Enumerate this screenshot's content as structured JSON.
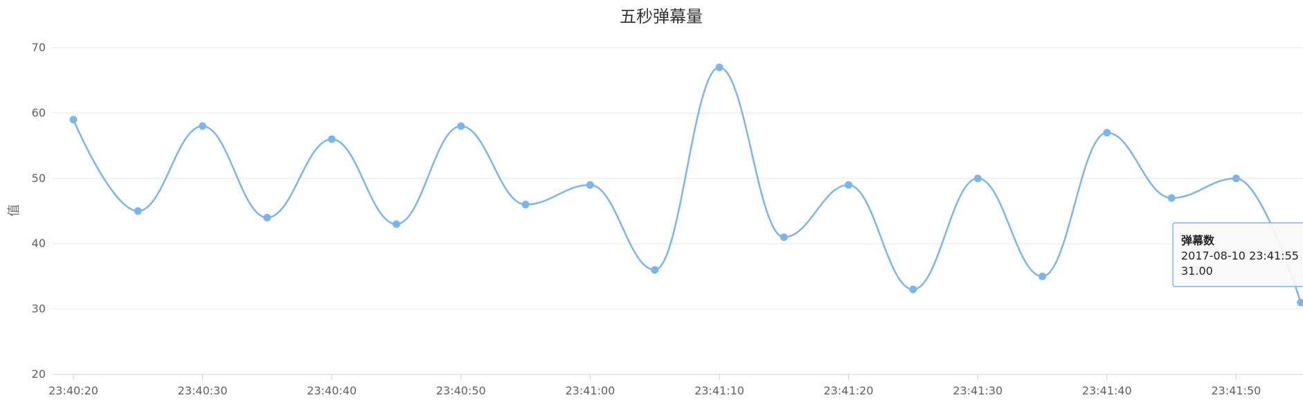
{
  "chart_data": {
    "type": "line",
    "title": "五秒弹幕量",
    "ylabel": "值",
    "xlabel": "",
    "ylim": [
      20,
      70
    ],
    "yticks": [
      20,
      30,
      40,
      50,
      60,
      70
    ],
    "xtick_labels": [
      "23:40:20",
      "23:40:30",
      "23:40:40",
      "23:40:50",
      "23:41:00",
      "23:41:10",
      "23:41:20",
      "23:41:30",
      "23:41:40",
      "23:41:50"
    ],
    "grid": true,
    "smooth": true,
    "colors": {
      "series": "#7cb5ec"
    },
    "x": [
      "23:40:20",
      "23:40:25",
      "23:40:30",
      "23:40:35",
      "23:40:40",
      "23:40:45",
      "23:40:50",
      "23:40:55",
      "23:41:00",
      "23:41:05",
      "23:41:10",
      "23:41:15",
      "23:41:20",
      "23:41:25",
      "23:41:30",
      "23:41:35",
      "23:41:40",
      "23:41:45",
      "23:41:50",
      "23:41:55"
    ],
    "series": [
      {
        "name": "弹幕数",
        "values": [
          59,
          45,
          58,
          44,
          56,
          43,
          58,
          46,
          49,
          36,
          67,
          41,
          49,
          33,
          50,
          35,
          57,
          47,
          50,
          31
        ]
      }
    ],
    "tooltip": {
      "series_name": "弹幕数",
      "datetime": "2017-08-10 23:41:55",
      "value": "31.00"
    }
  }
}
